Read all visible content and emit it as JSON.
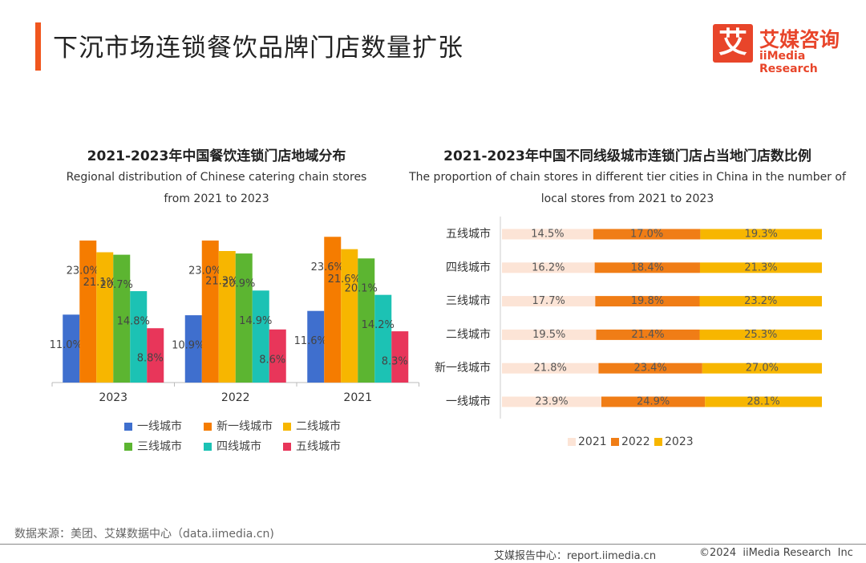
{
  "header": {
    "title": "下沉市场连锁餐饮品牌门店数量扩张"
  },
  "logo": {
    "mark": "艾",
    "name": "艾媒咨询",
    "en": "iiMedia Research"
  },
  "chart_data": [
    {
      "type": "bar",
      "title": "2021-2023年中国餐饮连锁门店地域分布",
      "subtitle": "Regional distribution of Chinese catering chain stores from 2021 to 2023",
      "categories": [
        "2023",
        "2022",
        "2021"
      ],
      "series": [
        {
          "name": "一线城市",
          "color": "#3f6fce",
          "values": [
            11.0,
            10.9,
            11.6
          ],
          "value_labels": [
            "11.0%",
            "10.9%",
            "11.6%"
          ]
        },
        {
          "name": "新一线城市",
          "color": "#f57c00",
          "values": [
            23.0,
            23.0,
            23.6
          ],
          "value_labels": [
            "23.0%",
            "23.0%",
            "23.6%"
          ]
        },
        {
          "name": "二线城市",
          "color": "#f7b600",
          "values": [
            21.1,
            21.3,
            21.6
          ],
          "value_labels": [
            "21.1%",
            "21.3%",
            "21.6%"
          ]
        },
        {
          "name": "三线城市",
          "color": "#5cb531",
          "values": [
            20.7,
            20.9,
            20.1
          ],
          "value_labels": [
            "20.7%",
            "20.9%",
            "20.1%"
          ]
        },
        {
          "name": "四线城市",
          "color": "#1cc2b4",
          "values": [
            14.8,
            14.9,
            14.2
          ],
          "value_labels": [
            "14.8%",
            "14.9%",
            "14.2%"
          ]
        },
        {
          "name": "五线城市",
          "color": "#e8365a",
          "values": [
            8.8,
            8.6,
            8.3
          ],
          "value_labels": [
            "8.8%",
            "8.6%",
            "8.3%"
          ]
        }
      ],
      "legend": "bottom"
    },
    {
      "type": "barh",
      "stacked": true,
      "title": "2021-2023年中国不同线级城市连锁门店占当地门店数比例",
      "subtitle": "The proportion of chain stores in different tier cities in China in the number of local stores from 2021 to 2023",
      "categories": [
        "五线城市",
        "四线城市",
        "三线城市",
        "二线城市",
        "新一线城市",
        "一线城市"
      ],
      "series": [
        {
          "name": "2021",
          "color": "#fce4d6",
          "values": [
            14.5,
            16.2,
            17.7,
            19.5,
            21.8,
            23.9
          ],
          "value_labels": [
            "14.5%",
            "16.2%",
            "17.7%",
            "19.5%",
            "21.8%",
            "23.9%"
          ]
        },
        {
          "name": "2022",
          "color": "#f07d16",
          "values": [
            17.0,
            18.4,
            19.8,
            21.4,
            23.4,
            24.9
          ],
          "value_labels": [
            "17.0%",
            "18.4%",
            "19.8%",
            "21.4%",
            "23.4%",
            "24.9%"
          ]
        },
        {
          "name": "2023",
          "color": "#f7b600",
          "values": [
            19.3,
            21.3,
            23.2,
            25.3,
            27.0,
            28.1
          ],
          "value_labels": [
            "19.3%",
            "21.3%",
            "23.2%",
            "25.3%",
            "27.0%",
            "28.1%"
          ]
        }
      ],
      "legend": "bottom"
    }
  ],
  "source": "数据来源：美团、艾媒数据中心（data.iimedia.cn)",
  "footer": {
    "left": "艾媒报告中心：report.iimedia.cn",
    "right": "©2024  iiMedia Research  Inc"
  }
}
